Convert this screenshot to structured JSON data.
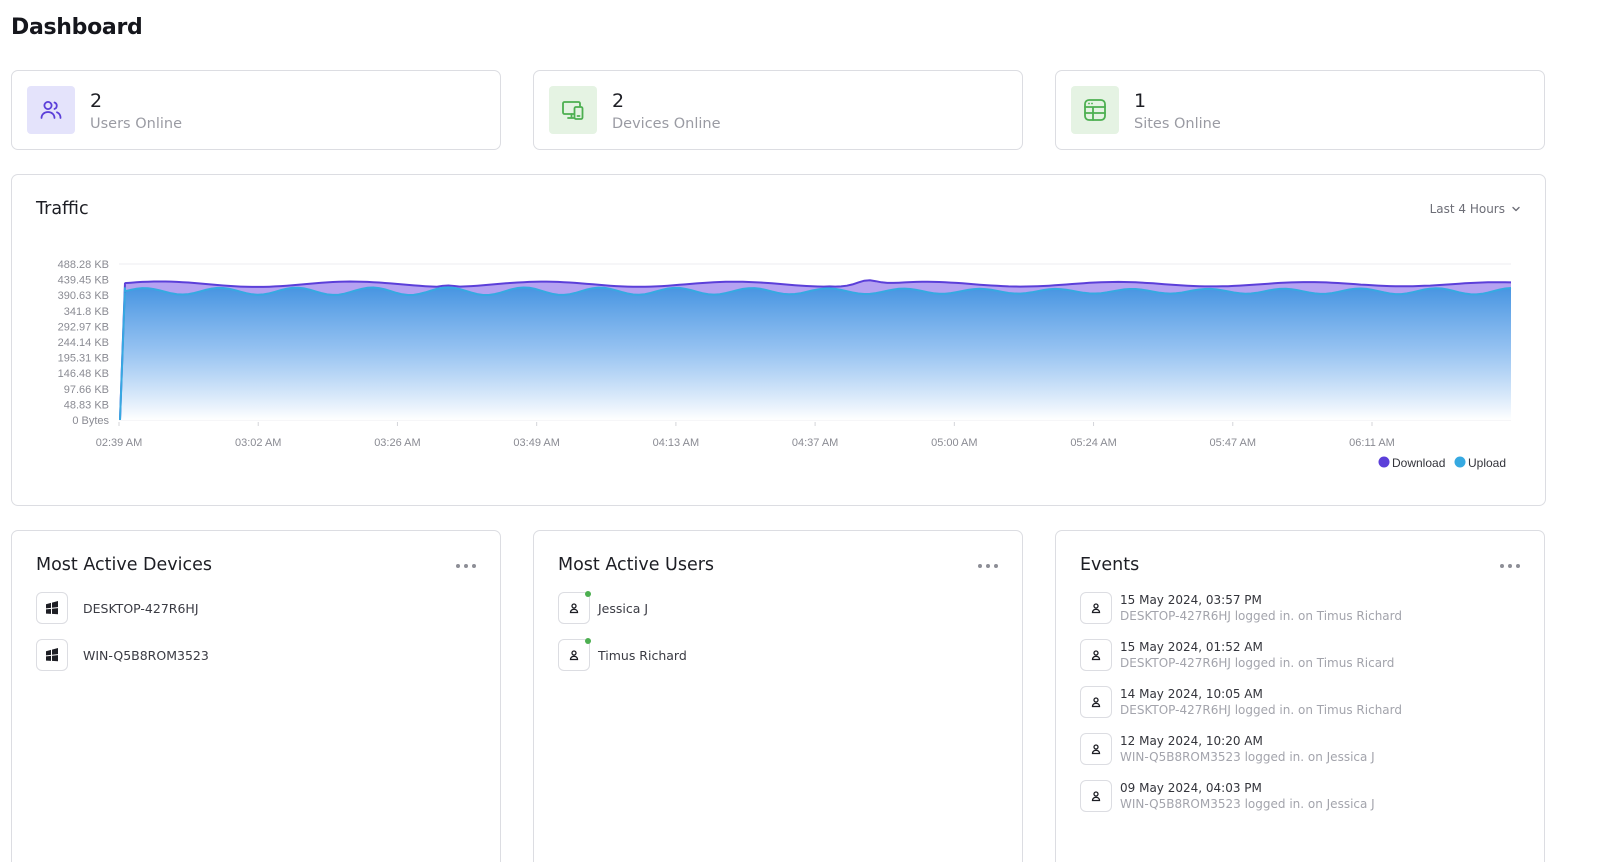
{
  "page": {
    "title": "Dashboard"
  },
  "stats": [
    {
      "value": "2",
      "label": "Users Online",
      "icon": "users-icon"
    },
    {
      "value": "2",
      "label": "Devices Online",
      "icon": "devices-icon"
    },
    {
      "value": "1",
      "label": "Sites Online",
      "icon": "sites-icon"
    }
  ],
  "traffic": {
    "title": "Traffic",
    "range": "Last 4 Hours"
  },
  "chart_data": {
    "type": "area",
    "title": "Traffic",
    "x": [
      "02:39 AM",
      "03:02 AM",
      "03:26 AM",
      "03:49 AM",
      "04:13 AM",
      "04:37 AM",
      "05:00 AM",
      "05:24 AM",
      "05:47 AM",
      "06:11 AM"
    ],
    "y_ticks": [
      "0 Bytes",
      "48.83 KB",
      "97.66 KB",
      "146.48 KB",
      "195.31 KB",
      "244.14 KB",
      "292.97 KB",
      "341.8 KB",
      "390.63 KB",
      "439.45 KB",
      "488.28 KB"
    ],
    "ylim": [
      0,
      488.28
    ],
    "y_unit": "KB",
    "grid": true,
    "legend_position": "bottom-right",
    "series": [
      {
        "name": "Download",
        "color": "#5b3fd9",
        "start": 0,
        "rise_to": 430,
        "baseline": 425,
        "amplitude": 6,
        "spike_at": "04:46 AM",
        "spike": 440
      },
      {
        "name": "Upload",
        "color": "#36a9e1",
        "start": 0,
        "rise_to": 415,
        "baseline": 403,
        "amplitude": 12
      }
    ]
  },
  "devices": {
    "title": "Most Active Devices",
    "items": [
      {
        "name": "DESKTOP-427R6HJ",
        "icon": "windows-icon"
      },
      {
        "name": "WIN-Q5B8ROM3523",
        "icon": "windows-icon"
      }
    ]
  },
  "users": {
    "title": "Most Active Users",
    "items": [
      {
        "name": "Jessica J",
        "icon": "user-icon",
        "online": true
      },
      {
        "name": "Timus Richard",
        "icon": "user-icon",
        "online": true
      }
    ]
  },
  "events": {
    "title": "Events",
    "items": [
      {
        "time": "15 May 2024, 03:57 PM",
        "desc": "DESKTOP-427R6HJ logged in. on Timus Richard"
      },
      {
        "time": "15 May 2024, 01:52 AM",
        "desc": "DESKTOP-427R6HJ logged in. on Timus Ricard"
      },
      {
        "time": "14 May 2024, 10:05 AM",
        "desc": "DESKTOP-427R6HJ logged in. on Timus Richard"
      },
      {
        "time": "12 May 2024, 10:20 AM",
        "desc": "WIN-Q5B8ROM3523 logged in. on Jessica J"
      },
      {
        "time": "09 May 2024, 04:03 PM",
        "desc": "WIN-Q5B8ROM3523 logged in. on Jessica J"
      }
    ]
  }
}
